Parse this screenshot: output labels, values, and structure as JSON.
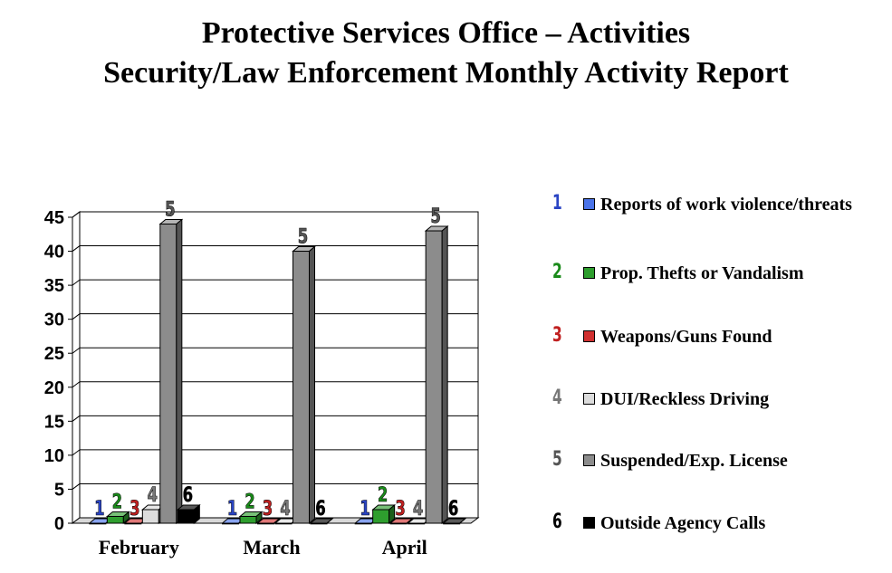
{
  "title_line1": "Protective Services Office – Activities",
  "title_line2": "Security/Law Enforcement Monthly Activity Report",
  "chart_data": {
    "type": "bar",
    "categories": [
      "February",
      "March",
      "April"
    ],
    "series": [
      {
        "name": "Reports of work violence/threats",
        "id": "1",
        "color": "#4a73e8",
        "label_color": "#2a44c4",
        "values": [
          0,
          0,
          0
        ]
      },
      {
        "name": "Prop. Thefts or Vandalism",
        "id": "2",
        "color": "#2e9e2e",
        "label_color": "#1a8a1a",
        "values": [
          1,
          1,
          2
        ]
      },
      {
        "name": "Weapons/Guns Found",
        "id": "3",
        "color": "#d03030",
        "label_color": "#c02020",
        "values": [
          0,
          0,
          0
        ]
      },
      {
        "name": "DUI/Reckless Driving",
        "id": "4",
        "color": "#dcdcdc",
        "label_color": "#777777",
        "values": [
          2,
          0,
          0
        ]
      },
      {
        "name": "Suspended/Exp. License",
        "id": "5",
        "color": "#8c8c8c",
        "label_color": "#555555",
        "values": [
          44,
          40,
          43
        ]
      },
      {
        "name": "Outside Agency Calls",
        "id": "6",
        "color": "#000000",
        "label_color": "#000000",
        "values": [
          2,
          0,
          0
        ]
      }
    ],
    "ylim": [
      0,
      45
    ],
    "yticks": [
      "0",
      "5",
      "10",
      "15",
      "20",
      "25",
      "30",
      "35",
      "40",
      "45"
    ],
    "grid": true,
    "legend_position": "right"
  }
}
